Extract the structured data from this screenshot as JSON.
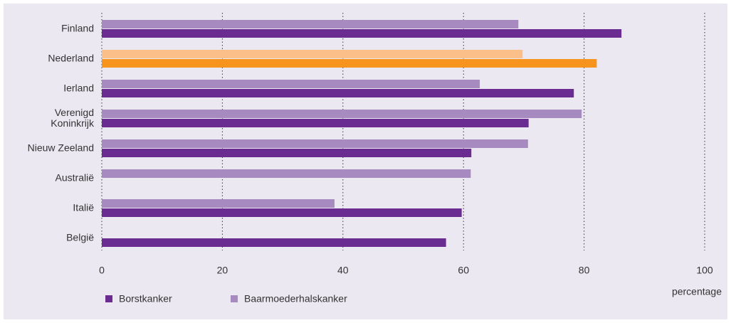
{
  "chart_data": {
    "type": "hbar",
    "categories": [
      "Finland",
      "Nederland",
      "Ierland",
      "Verenigd Koninkrijk",
      "Nieuw Zeeland",
      "Australië",
      "Italië",
      "België"
    ],
    "series": [
      {
        "name": "Borstkanker",
        "color": "#6a2c91",
        "colors": [
          "#6a2c91",
          "#f7941d",
          "#6a2c91",
          "#6a2c91",
          "#6a2c91",
          "#6a2c91",
          "#6a2c91",
          "#6a2c91"
        ],
        "values": [
          86.2,
          82.1,
          78.3,
          70.8,
          61.3,
          null,
          59.7,
          57.1
        ]
      },
      {
        "name": "Baarmoederhalskanker",
        "color": "#a78bc0",
        "colors": [
          "#a78bc0",
          "#fbc08a",
          "#a78bc0",
          "#a78bc0",
          "#a78bc0",
          "#a78bc0",
          "#a78bc0",
          "#a78bc0"
        ],
        "values": [
          69.1,
          69.8,
          62.7,
          79.6,
          70.7,
          61.2,
          38.6,
          null
        ]
      }
    ],
    "xlabel": "percentage",
    "xlim": [
      0,
      100
    ],
    "xticks": [
      0,
      20,
      40,
      60,
      80,
      100
    ],
    "grid": true,
    "legend": "bottom-left"
  }
}
